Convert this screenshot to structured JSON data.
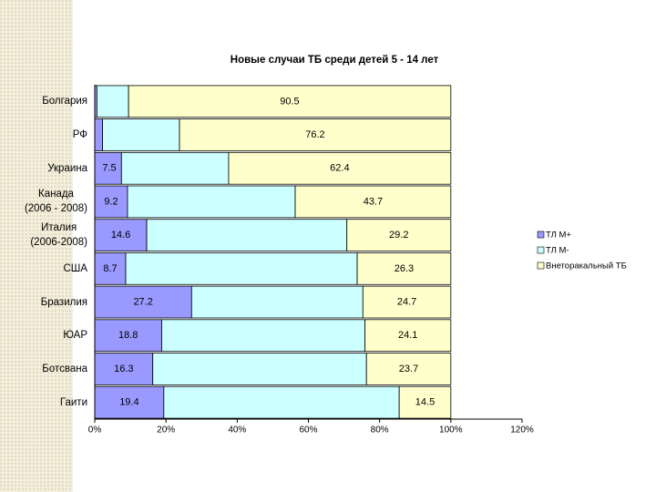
{
  "chart_data": {
    "type": "stacked-bar-horizontal",
    "title": "Новые случаи ТБ среди детей 5 - 14 лет",
    "categories": [
      "Болгария",
      "РФ",
      "Украина",
      "Канада\n(2006 - 2008)",
      "Италия\n(2006-2008)",
      "США",
      "Бразилия",
      "ЮАР",
      "Ботсвана",
      "Гаити"
    ],
    "series": [
      {
        "name": "ТЛ М+",
        "color": "#9999ff",
        "show_labels": true,
        "values": [
          0.6,
          2.2,
          7.5,
          9.2,
          14.6,
          8.7,
          27.2,
          18.8,
          16.3,
          19.4
        ]
      },
      {
        "name": "ТЛ М-",
        "color": "#ccffff",
        "show_labels": false,
        "values": [
          8.9,
          21.6,
          30.1,
          47.1,
          56.2,
          65,
          48.1,
          57.1,
          60,
          66.1
        ]
      },
      {
        "name": "Внеторакальный ТБ",
        "color": "#ffffcc",
        "show_labels": true,
        "values": [
          90.5,
          76.2,
          62.4,
          43.7,
          29.2,
          26.3,
          24.7,
          24.1,
          23.7,
          14.5
        ]
      }
    ],
    "xlim": [
      0,
      120
    ],
    "xticks": [
      {
        "value": 0,
        "label": "0%"
      },
      {
        "value": 20,
        "label": "20%"
      },
      {
        "value": 40,
        "label": "40%"
      },
      {
        "value": 60,
        "label": "60%"
      },
      {
        "value": 80,
        "label": "80%"
      },
      {
        "value": 100,
        "label": "100%"
      },
      {
        "value": 120,
        "label": "120%"
      }
    ],
    "legend": "right"
  }
}
